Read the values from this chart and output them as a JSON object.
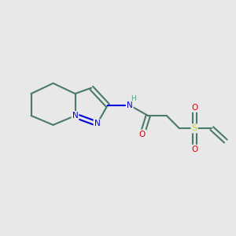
{
  "bg_color": "#e8e8e8",
  "bond_color": "#4a7a6a",
  "N_color": "#0000dd",
  "O_color": "#dd0000",
  "S_color": "#cccc00",
  "H_color": "#5a9a88",
  "lw": 1.5,
  "fig_w": 3.0,
  "fig_h": 3.0,
  "dpi": 100,
  "xlim": [
    0,
    10
  ],
  "ylim": [
    0,
    10
  ]
}
